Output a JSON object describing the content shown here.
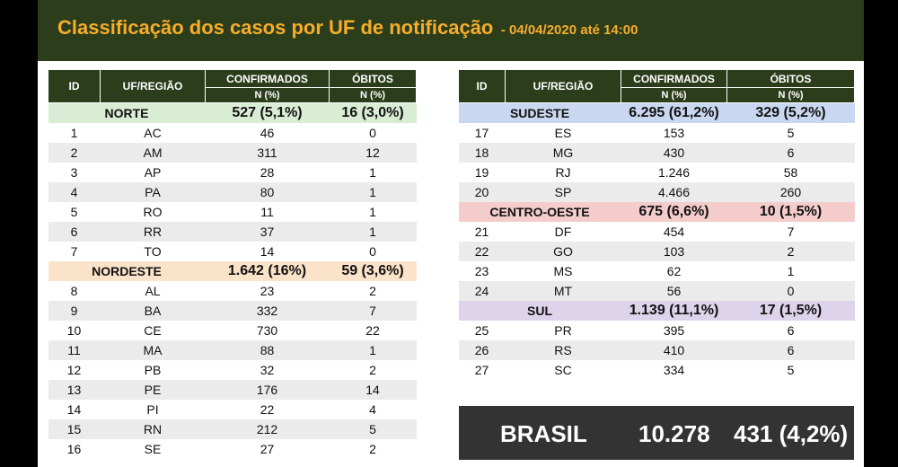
{
  "header": {
    "title": "Classificação dos casos por UF de notificação",
    "subtitle": "- 04/04/2020 até 14:00"
  },
  "columns": {
    "id": "ID",
    "uf": "UF/REGIÃO",
    "confirmados": "CONFIRMADOS",
    "obitos": "ÓBITOS",
    "unit": "N (%)"
  },
  "colors": {
    "header_bg": "#2c3d1c",
    "title_text": "#f6ad2a",
    "norte": "#d9ecd4",
    "nordeste": "#fbe3c9",
    "sudeste": "#c9d7f0",
    "centro_oeste": "#f4cccc",
    "sul": "#ddd3ea",
    "total_bg": "#333333"
  },
  "left_table": [
    {
      "type": "region",
      "name": "NORTE",
      "confirmados": "527 (5,1%)",
      "obitos": "16 (3,0%)",
      "color": "#d9ecd4"
    },
    {
      "type": "row",
      "id": "1",
      "uf": "AC",
      "confirmados": "46",
      "obitos": "0"
    },
    {
      "type": "row",
      "id": "2",
      "uf": "AM",
      "confirmados": "311",
      "obitos": "12"
    },
    {
      "type": "row",
      "id": "3",
      "uf": "AP",
      "confirmados": "28",
      "obitos": "1"
    },
    {
      "type": "row",
      "id": "4",
      "uf": "PA",
      "confirmados": "80",
      "obitos": "1"
    },
    {
      "type": "row",
      "id": "5",
      "uf": "RO",
      "confirmados": "11",
      "obitos": "1"
    },
    {
      "type": "row",
      "id": "6",
      "uf": "RR",
      "confirmados": "37",
      "obitos": "1"
    },
    {
      "type": "row",
      "id": "7",
      "uf": "TO",
      "confirmados": "14",
      "obitos": "0"
    },
    {
      "type": "region",
      "name": "NORDESTE",
      "confirmados": "1.642 (16%)",
      "obitos": "59 (3,6%)",
      "color": "#fbe3c9"
    },
    {
      "type": "row",
      "id": "8",
      "uf": "AL",
      "confirmados": "23",
      "obitos": "2"
    },
    {
      "type": "row",
      "id": "9",
      "uf": "BA",
      "confirmados": "332",
      "obitos": "7"
    },
    {
      "type": "row",
      "id": "10",
      "uf": "CE",
      "confirmados": "730",
      "obitos": "22"
    },
    {
      "type": "row",
      "id": "11",
      "uf": "MA",
      "confirmados": "88",
      "obitos": "1"
    },
    {
      "type": "row",
      "id": "12",
      "uf": "PB",
      "confirmados": "32",
      "obitos": "2"
    },
    {
      "type": "row",
      "id": "13",
      "uf": "PE",
      "confirmados": "176",
      "obitos": "14"
    },
    {
      "type": "row",
      "id": "14",
      "uf": "PI",
      "confirmados": "22",
      "obitos": "4"
    },
    {
      "type": "row",
      "id": "15",
      "uf": "RN",
      "confirmados": "212",
      "obitos": "5"
    },
    {
      "type": "row",
      "id": "16",
      "uf": "SE",
      "confirmados": "27",
      "obitos": "2"
    }
  ],
  "right_table": [
    {
      "type": "region",
      "name": "SUDESTE",
      "confirmados": "6.295 (61,2%)",
      "obitos": "329 (5,2%)",
      "color": "#c9d7f0"
    },
    {
      "type": "row",
      "id": "17",
      "uf": "ES",
      "confirmados": "153",
      "obitos": "5"
    },
    {
      "type": "row",
      "id": "18",
      "uf": "MG",
      "confirmados": "430",
      "obitos": "6"
    },
    {
      "type": "row",
      "id": "19",
      "uf": "RJ",
      "confirmados": "1.246",
      "obitos": "58"
    },
    {
      "type": "row",
      "id": "20",
      "uf": "SP",
      "confirmados": "4.466",
      "obitos": "260"
    },
    {
      "type": "region",
      "name": "CENTRO-OESTE",
      "confirmados": "675 (6,6%)",
      "obitos": "10 (1,5%)",
      "color": "#f4cccc"
    },
    {
      "type": "row",
      "id": "21",
      "uf": "DF",
      "confirmados": "454",
      "obitos": "7"
    },
    {
      "type": "row",
      "id": "22",
      "uf": "GO",
      "confirmados": "103",
      "obitos": "2"
    },
    {
      "type": "row",
      "id": "23",
      "uf": "MS",
      "confirmados": "62",
      "obitos": "1"
    },
    {
      "type": "row",
      "id": "24",
      "uf": "MT",
      "confirmados": "56",
      "obitos": "0"
    },
    {
      "type": "region",
      "name": "SUL",
      "confirmados": "1.139 (11,1%)",
      "obitos": "17 (1,5%)",
      "color": "#ddd3ea"
    },
    {
      "type": "row",
      "id": "25",
      "uf": "PR",
      "confirmados": "395",
      "obitos": "6"
    },
    {
      "type": "row",
      "id": "26",
      "uf": "RS",
      "confirmados": "410",
      "obitos": "6"
    },
    {
      "type": "row",
      "id": "27",
      "uf": "SC",
      "confirmados": "334",
      "obitos": "5"
    }
  ],
  "total": {
    "label": "BRASIL",
    "confirmados": "10.278",
    "obitos": "431 (4,2%)"
  }
}
